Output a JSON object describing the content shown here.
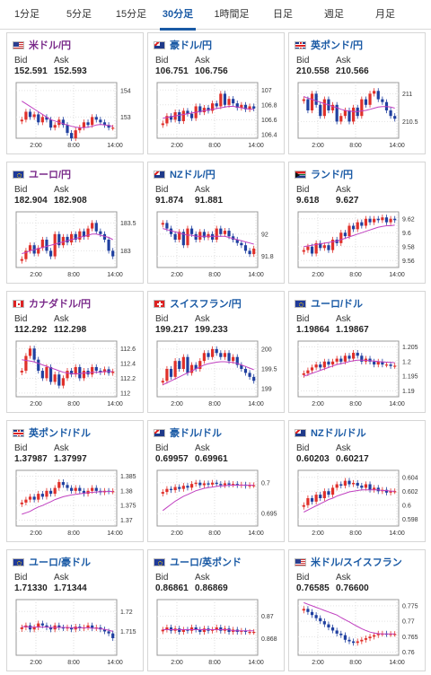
{
  "tabs": [
    {
      "label": "1分足",
      "active": false
    },
    {
      "label": "5分足",
      "active": false
    },
    {
      "label": "15分足",
      "active": false
    },
    {
      "label": "30分足",
      "active": true
    },
    {
      "label": "1時間足",
      "active": false
    },
    {
      "label": "日足",
      "active": false
    },
    {
      "label": "週足",
      "active": false
    },
    {
      "label": "月足",
      "active": false
    }
  ],
  "labels": {
    "bid": "Bid",
    "ask": "Ask"
  },
  "colors": {
    "link": "#1a5aa5",
    "visited": "#7a2a8a",
    "up": "#e0302a",
    "down": "#2040a0",
    "ma": "#c040c0"
  },
  "pairs": [
    {
      "name": "米ドル/円",
      "flag": "us-jp",
      "visited": true,
      "bid": "152.591",
      "ask": "152.593",
      "chart": {
        "ticks": [
          "154",
          "153"
        ],
        "times": [
          "2:00",
          "8:00",
          "14:00"
        ],
        "min": 152.2,
        "max": 154.3,
        "closes": [
          152.9,
          153.2,
          153.0,
          153.1,
          152.8,
          153.0,
          152.9,
          152.6,
          152.7,
          152.9,
          152.7,
          152.4,
          152.2,
          152.5,
          152.6,
          152.8,
          152.7,
          153.0,
          152.9,
          152.8,
          152.7,
          152.6,
          152.6
        ],
        "ma": [
          153.6,
          153.5,
          153.4,
          153.3,
          153.2,
          153.1,
          153.0,
          152.9,
          152.85,
          152.8,
          152.75,
          152.7,
          152.65,
          152.62,
          152.6,
          152.6,
          152.62,
          152.65,
          152.7,
          152.72,
          152.7,
          152.68,
          152.65
        ]
      }
    },
    {
      "name": "豪ドル/円",
      "flag": "au-jp",
      "visited": false,
      "bid": "106.751",
      "ask": "106.756",
      "chart": {
        "ticks": [
          "107",
          "106.8",
          "106.6",
          "106.4"
        ],
        "times": [
          "2:00",
          "8:00",
          "14:00"
        ],
        "min": 106.35,
        "max": 107.1,
        "closes": [
          106.55,
          106.65,
          106.6,
          106.7,
          106.58,
          106.72,
          106.68,
          106.62,
          106.78,
          106.7,
          106.76,
          106.72,
          106.82,
          106.78,
          106.95,
          106.8,
          106.88,
          106.82,
          106.76,
          106.8,
          106.74,
          106.78,
          106.75
        ],
        "ma": [
          106.62,
          106.63,
          106.64,
          106.65,
          106.66,
          106.67,
          106.68,
          106.69,
          106.7,
          106.71,
          106.72,
          106.73,
          106.74,
          106.75,
          106.76,
          106.77,
          106.78,
          106.78,
          106.77,
          106.76,
          106.75,
          106.74,
          106.74
        ]
      }
    },
    {
      "name": "英ポンド/円",
      "flag": "gb-jp",
      "visited": false,
      "bid": "210.558",
      "ask": "210.566",
      "chart": {
        "ticks": [
          "211",
          "210.5"
        ],
        "times": [
          "2:00",
          "8:00",
          "14:00"
        ],
        "min": 210.2,
        "max": 211.2,
        "closes": [
          210.9,
          210.7,
          211.0,
          210.8,
          210.6,
          210.9,
          210.7,
          210.8,
          210.5,
          210.6,
          210.7,
          210.5,
          210.75,
          210.6,
          210.9,
          210.8,
          211.0,
          211.05,
          210.9,
          210.85,
          210.7,
          210.6,
          210.55
        ],
        "ma": [
          210.95,
          210.92,
          210.9,
          210.87,
          210.85,
          210.82,
          210.8,
          210.77,
          210.75,
          210.72,
          210.7,
          210.69,
          210.68,
          210.68,
          210.69,
          210.7,
          210.72,
          210.74,
          210.76,
          210.77,
          210.77,
          210.76,
          210.74
        ]
      }
    },
    {
      "name": "ユーロ/円",
      "flag": "eu-jp",
      "visited": true,
      "bid": "182.904",
      "ask": "182.908",
      "chart": {
        "ticks": [
          "183.5",
          "183"
        ],
        "times": [
          "2:00",
          "8:00",
          "14:00"
        ],
        "min": 182.7,
        "max": 183.7,
        "closes": [
          182.85,
          183.0,
          183.1,
          182.95,
          183.05,
          183.2,
          183.0,
          182.9,
          183.3,
          183.1,
          183.25,
          183.15,
          183.3,
          183.2,
          183.35,
          183.25,
          183.4,
          183.5,
          183.35,
          183.3,
          183.2,
          183.0,
          182.9
        ],
        "ma": [
          182.95,
          182.97,
          183.0,
          183.02,
          183.04,
          183.06,
          183.08,
          183.1,
          183.12,
          183.14,
          183.16,
          183.18,
          183.2,
          183.22,
          183.24,
          183.26,
          183.28,
          183.3,
          183.3,
          183.28,
          183.26,
          183.24,
          183.2
        ]
      }
    },
    {
      "name": "NZドル/円",
      "flag": "nz-jp",
      "visited": false,
      "bid": "91.874",
      "ask": "91.881",
      "chart": {
        "ticks": [
          "92",
          "91.8"
        ],
        "times": [
          "2:00",
          "8:00",
          "14:00"
        ],
        "min": 91.7,
        "max": 92.2,
        "closes": [
          92.1,
          92.05,
          92.0,
          91.95,
          92.02,
          91.9,
          92.05,
          92.0,
          91.95,
          92.02,
          91.97,
          92.0,
          91.95,
          92.05,
          92.0,
          92.03,
          91.98,
          91.95,
          91.92,
          91.9,
          91.85,
          91.82,
          91.87
        ],
        "ma": [
          92.05,
          92.04,
          92.03,
          92.02,
          92.01,
          92.0,
          91.99,
          91.99,
          91.98,
          91.98,
          91.98,
          91.98,
          91.98,
          91.98,
          91.98,
          91.98,
          91.97,
          91.96,
          91.95,
          91.94,
          91.93,
          91.92,
          91.91
        ]
      }
    },
    {
      "name": "ランド/円",
      "flag": "za-jp",
      "visited": false,
      "bid": "9.618",
      "ask": "9.627",
      "chart": {
        "ticks": [
          "9.62",
          "9.6",
          "9.58",
          "9.56"
        ],
        "times": [
          "2:00",
          "8:00",
          "14:00"
        ],
        "min": 9.55,
        "max": 9.63,
        "closes": [
          9.575,
          9.58,
          9.57,
          9.585,
          9.578,
          9.582,
          9.575,
          9.59,
          9.585,
          9.6,
          9.595,
          9.61,
          9.605,
          9.615,
          9.61,
          9.62,
          9.615,
          9.62,
          9.618,
          9.622,
          9.615,
          9.62,
          9.618
        ],
        "ma": [
          9.58,
          9.581,
          9.582,
          9.583,
          9.584,
          9.585,
          9.586,
          9.587,
          9.588,
          9.59,
          9.592,
          9.594,
          9.596,
          9.598,
          9.6,
          9.602,
          9.604,
          9.606,
          9.608,
          9.609,
          9.61,
          9.61,
          9.611
        ]
      }
    },
    {
      "name": "カナダドル/円",
      "flag": "ca-jp",
      "visited": true,
      "bid": "112.292",
      "ask": "112.298",
      "chart": {
        "ticks": [
          "112.6",
          "112.4",
          "112.2",
          "112"
        ],
        "times": [
          "2:00",
          "8:00",
          "14:00"
        ],
        "min": 111.95,
        "max": 112.7,
        "closes": [
          112.3,
          112.5,
          112.6,
          112.45,
          112.3,
          112.2,
          112.35,
          112.15,
          112.25,
          112.1,
          112.2,
          112.3,
          112.25,
          112.35,
          112.2,
          112.3,
          112.25,
          112.35,
          112.3,
          112.28,
          112.32,
          112.27,
          112.29
        ],
        "ma": [
          112.45,
          112.44,
          112.43,
          112.42,
          112.4,
          112.38,
          112.36,
          112.34,
          112.32,
          112.3,
          112.28,
          112.27,
          112.26,
          112.26,
          112.26,
          112.27,
          112.27,
          112.28,
          112.28,
          112.28,
          112.29,
          112.29,
          112.29
        ]
      }
    },
    {
      "name": "スイスフラン/円",
      "flag": "ch-jp",
      "visited": false,
      "bid": "199.217",
      "ask": "199.233",
      "chart": {
        "ticks": [
          "200",
          "199.5",
          "199"
        ],
        "times": [
          "2:00",
          "8:00",
          "14:00"
        ],
        "min": 198.8,
        "max": 200.2,
        "closes": [
          199.2,
          199.5,
          199.3,
          199.7,
          199.5,
          199.8,
          199.4,
          199.6,
          199.5,
          199.7,
          199.9,
          199.8,
          200.0,
          199.9,
          199.8,
          199.9,
          199.7,
          199.8,
          199.6,
          199.5,
          199.4,
          199.3,
          199.2
        ],
        "ma": [
          199.1,
          199.15,
          199.2,
          199.25,
          199.3,
          199.35,
          199.4,
          199.45,
          199.5,
          199.55,
          199.6,
          199.63,
          199.65,
          199.67,
          199.68,
          199.68,
          199.67,
          199.66,
          199.64,
          199.6,
          199.56,
          199.52,
          199.48
        ]
      }
    },
    {
      "name": "ユーロ/ドル",
      "flag": "eu-us",
      "visited": false,
      "bid": "1.19864",
      "ask": "1.19867",
      "chart": {
        "ticks": [
          "1.205",
          "1.2",
          "1.195",
          "1.19"
        ],
        "times": [
          "2:00",
          "8:00",
          "14:00"
        ],
        "min": 1.188,
        "max": 1.207,
        "closes": [
          1.196,
          1.197,
          1.198,
          1.199,
          1.198,
          1.2,
          1.199,
          1.2,
          1.201,
          1.2,
          1.202,
          1.201,
          1.203,
          1.202,
          1.2,
          1.201,
          1.2,
          1.199,
          1.2,
          1.199,
          1.199,
          1.1985,
          1.1986
        ],
        "ma": [
          1.195,
          1.1955,
          1.196,
          1.1965,
          1.197,
          1.1975,
          1.198,
          1.1985,
          1.199,
          1.1993,
          1.1996,
          1.2,
          1.2003,
          1.2005,
          1.2005,
          1.2004,
          1.2003,
          1.2002,
          1.2,
          1.1999,
          1.1998,
          1.1997,
          1.1996
        ]
      }
    },
    {
      "name": "英ポンド/ドル",
      "flag": "gb-us",
      "visited": false,
      "bid": "1.37987",
      "ask": "1.37997",
      "chart": {
        "ticks": [
          "1.385",
          "1.38",
          "1.375",
          "1.37"
        ],
        "times": [
          "2:00",
          "8:00",
          "14:00"
        ],
        "min": 1.368,
        "max": 1.387,
        "closes": [
          1.376,
          1.377,
          1.378,
          1.377,
          1.379,
          1.378,
          1.38,
          1.379,
          1.381,
          1.383,
          1.382,
          1.381,
          1.38,
          1.381,
          1.38,
          1.379,
          1.38,
          1.381,
          1.38,
          1.3795,
          1.38,
          1.3798,
          1.3799
        ],
        "ma": [
          1.372,
          1.3725,
          1.373,
          1.3738,
          1.3745,
          1.375,
          1.3757,
          1.3763,
          1.377,
          1.3775,
          1.378,
          1.3783,
          1.3786,
          1.3788,
          1.379,
          1.3792,
          1.3794,
          1.3795,
          1.3796,
          1.3797,
          1.3797,
          1.3798,
          1.3798
        ]
      }
    },
    {
      "name": "豪ドル/ドル",
      "flag": "au-us",
      "visited": false,
      "bid": "0.69957",
      "ask": "0.69961",
      "chart": {
        "ticks": [
          "0.7",
          "0.695"
        ],
        "times": [
          "2:00",
          "8:00",
          "14:00"
        ],
        "min": 0.693,
        "max": 0.702,
        "closes": [
          0.6985,
          0.699,
          0.6988,
          0.6993,
          0.699,
          0.6995,
          0.6992,
          0.6998,
          0.7,
          0.6996,
          0.6999,
          0.6997,
          0.7,
          0.6998,
          0.6996,
          0.6999,
          0.6997,
          0.6998,
          0.6996,
          0.6997,
          0.6995,
          0.6996,
          0.6996
        ],
        "ma": [
          0.6955,
          0.696,
          0.6965,
          0.697,
          0.6974,
          0.6978,
          0.6981,
          0.6984,
          0.6987,
          0.6989,
          0.6991,
          0.6992,
          0.6993,
          0.6994,
          0.6995,
          0.6995,
          0.6996,
          0.6996,
          0.6996,
          0.6996,
          0.6996,
          0.6996,
          0.6996
        ]
      }
    },
    {
      "name": "NZドル/ドル",
      "flag": "nz-us",
      "visited": false,
      "bid": "0.60203",
      "ask": "0.60217",
      "chart": {
        "ticks": [
          "0.604",
          "0.602",
          "0.6",
          "0.598"
        ],
        "times": [
          "2:00",
          "8:00",
          "14:00"
        ],
        "min": 0.597,
        "max": 0.605,
        "closes": [
          0.6,
          0.601,
          0.6005,
          0.6015,
          0.601,
          0.602,
          0.6015,
          0.6025,
          0.603,
          0.6028,
          0.6035,
          0.603,
          0.6032,
          0.6028,
          0.6025,
          0.603,
          0.6022,
          0.6025,
          0.602,
          0.6022,
          0.6018,
          0.602,
          0.602
        ],
        "ma": [
          0.599,
          0.5993,
          0.5996,
          0.5999,
          0.6002,
          0.6005,
          0.6008,
          0.601,
          0.6013,
          0.6015,
          0.6017,
          0.6019,
          0.602,
          0.6021,
          0.6022,
          0.6022,
          0.6022,
          0.6022,
          0.6022,
          0.6021,
          0.6021,
          0.602,
          0.602
        ]
      }
    },
    {
      "name": "ユーロ/豪ドル",
      "flag": "eu-au",
      "visited": false,
      "bid": "1.71330",
      "ask": "1.71344",
      "chart": {
        "ticks": [
          "1.72",
          "1.715"
        ],
        "times": [
          "2:00",
          "8:00",
          "14:00"
        ],
        "min": 1.709,
        "max": 1.723,
        "closes": [
          1.716,
          1.7165,
          1.7155,
          1.716,
          1.717,
          1.7165,
          1.716,
          1.7155,
          1.7165,
          1.716,
          1.7158,
          1.716,
          1.7155,
          1.7162,
          1.7158,
          1.716,
          1.7165,
          1.7158,
          1.716,
          1.7155,
          1.715,
          1.7145,
          1.7133
        ],
        "ma": [
          1.7162,
          1.7162,
          1.7161,
          1.7161,
          1.7161,
          1.7161,
          1.7161,
          1.716,
          1.716,
          1.716,
          1.716,
          1.716,
          1.7159,
          1.7159,
          1.7159,
          1.7159,
          1.7159,
          1.7158,
          1.7158,
          1.7157,
          1.7155,
          1.7153,
          1.715
        ]
      }
    },
    {
      "name": "ユーロ/英ポンド",
      "flag": "eu-gb",
      "visited": false,
      "bid": "0.86861",
      "ask": "0.86869",
      "chart": {
        "ticks": [
          "0.87",
          "0.868"
        ],
        "times": [
          "2:00",
          "8:00",
          "14:00"
        ],
        "min": 0.8665,
        "max": 0.8715,
        "closes": [
          0.8688,
          0.869,
          0.8687,
          0.8689,
          0.8686,
          0.8688,
          0.8687,
          0.869,
          0.8688,
          0.8686,
          0.8689,
          0.8687,
          0.8688,
          0.869,
          0.8687,
          0.8689,
          0.8686,
          0.8688,
          0.8686,
          0.8687,
          0.8686,
          0.8686,
          0.8686
        ],
        "ma": [
          0.8688,
          0.8688,
          0.8688,
          0.8688,
          0.8688,
          0.8688,
          0.8688,
          0.8688,
          0.8688,
          0.8688,
          0.8688,
          0.8688,
          0.8688,
          0.8688,
          0.8688,
          0.8688,
          0.8688,
          0.8687,
          0.8687,
          0.8687,
          0.8687,
          0.8687,
          0.8687
        ]
      }
    },
    {
      "name": "米ドル/スイスフラン",
      "flag": "us-ch",
      "visited": false,
      "bid": "0.76585",
      "ask": "0.76600",
      "chart": {
        "ticks": [
          "0.775",
          "0.77",
          "0.765",
          "0.76"
        ],
        "times": [
          "2:00",
          "8:00",
          "14:00"
        ],
        "min": 0.759,
        "max": 0.777,
        "closes": [
          0.774,
          0.773,
          0.772,
          0.771,
          0.77,
          0.769,
          0.768,
          0.767,
          0.766,
          0.7655,
          0.764,
          0.7635,
          0.763,
          0.7635,
          0.764,
          0.7645,
          0.765,
          0.7655,
          0.766,
          0.766,
          0.7658,
          0.7659,
          0.7659
        ],
        "ma": [
          0.776,
          0.7755,
          0.775,
          0.7745,
          0.774,
          0.7735,
          0.773,
          0.7725,
          0.772,
          0.7712,
          0.7705,
          0.7698,
          0.769,
          0.7683,
          0.7676,
          0.767,
          0.7665,
          0.7662,
          0.766,
          0.7659,
          0.7659,
          0.7659,
          0.7659
        ]
      }
    }
  ]
}
